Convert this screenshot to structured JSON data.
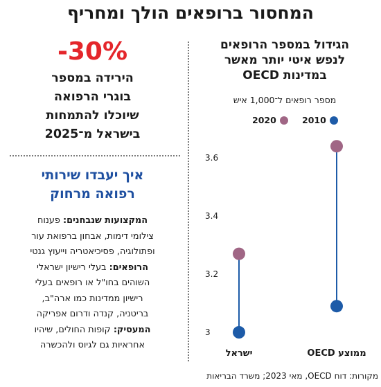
{
  "headline": "המחסור ברופאים הולך ומחריף",
  "stat": {
    "value": "-30%",
    "lines": [
      "הירידה במספר",
      "בוגרי הרפואה",
      "שיוכלו להתמחות",
      "בישראל מ־2025"
    ]
  },
  "remote_box": {
    "title_lines": [
      "איך יעבדו שירותי",
      "רפואה מרחוק"
    ],
    "paragraphs": [
      {
        "label": "המקצועות שנבחנים:",
        "lines": [
          "פענוח",
          "צילומי דימות, אבחון ברפואת עור",
          "ופתולוגיה, פסיכיאטריה וייעוץ גנטי"
        ]
      },
      {
        "label": "הרופאים:",
        "lines": [
          "בעלי רישיון ישראלי",
          "השוהים בחו\"ל או רופאים בעלי",
          "רישיון ממדינות כמו ארה\"ב,",
          "בריטניה, קנדה ודרום אפריקה"
        ]
      },
      {
        "label": "המעסיק:",
        "lines": [
          "קופות החולים, שיהיו",
          "אחראיות גם לגיוס ולהכשרה"
        ]
      }
    ]
  },
  "chart_title_lines": [
    "הגידול במספר הרופאים",
    "לנפש איטי יותר מאשר",
    "במדינות OECD"
  ],
  "chart_subtitle": "מספר רופאים ל־1,000 איש",
  "source": "מקורות: דוח OECD, מאי 2023; משרד הבריאות",
  "colors": {
    "y2010": "#1d5ba8",
    "y2020": "#a06685",
    "connector": "#1d5ba8",
    "headline_red": "#e4262b",
    "box_title_blue": "#1e4fa0"
  },
  "chart_data": {
    "type": "dumbbell",
    "title": "הגידול במספר הרופאים לנפש איטי יותר מאשר במדינות OECD",
    "subtitle": "מספר רופאים ל־1,000 איש",
    "categories": [
      "ישראל",
      "ממוצע OECD"
    ],
    "series": [
      {
        "name": "2010",
        "values": [
          3.0,
          3.09
        ]
      },
      {
        "name": "2020",
        "values": [
          3.27,
          3.64
        ]
      }
    ],
    "ylim": [
      3,
      3.6
    ],
    "yticks": [
      "3",
      "3.2",
      "3.4",
      "3.6"
    ],
    "ytick_values": [
      3.0,
      3.2,
      3.4,
      3.6
    ],
    "legend_position": "top",
    "grid": false
  }
}
